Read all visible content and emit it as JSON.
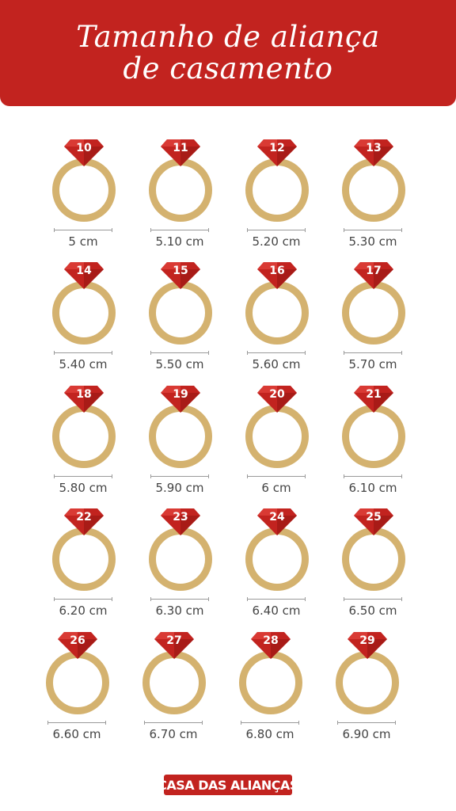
{
  "header": {
    "title_line1": "Tamanho de aliança",
    "title_line2": "de casamento"
  },
  "rings": [
    {
      "size": "10",
      "measure": "5 cm"
    },
    {
      "size": "11",
      "measure": "5.10 cm"
    },
    {
      "size": "12",
      "measure": "5.20 cm"
    },
    {
      "size": "13",
      "measure": "5.30 cm"
    },
    {
      "size": "14",
      "measure": "5.40 cm"
    },
    {
      "size": "15",
      "measure": "5.50 cm"
    },
    {
      "size": "16",
      "measure": "5.60 cm"
    },
    {
      "size": "17",
      "measure": "5.70 cm"
    },
    {
      "size": "18",
      "measure": "5.80 cm"
    },
    {
      "size": "19",
      "measure": "5.90 cm"
    },
    {
      "size": "20",
      "measure": "6 cm"
    },
    {
      "size": "21",
      "measure": "6.10 cm"
    },
    {
      "size": "22",
      "measure": "6.20 cm"
    },
    {
      "size": "23",
      "measure": "6.30 cm"
    },
    {
      "size": "24",
      "measure": "6.40 cm"
    },
    {
      "size": "25",
      "measure": "6.50 cm"
    },
    {
      "size": "26",
      "measure": "6.60 cm"
    },
    {
      "size": "27",
      "measure": "6.70 cm"
    },
    {
      "size": "28",
      "measure": "6.80 cm"
    },
    {
      "size": "29",
      "measure": "6.90 cm"
    }
  ],
  "brand": {
    "label": "CASA DAS ALIANÇAS"
  },
  "colors": {
    "accent_red": "#c2231f",
    "ring_gold": "#d4b26f",
    "text_gray": "#444444"
  },
  "icons": {
    "gem": "heart-diamond-icon",
    "ring": "ring-icon"
  }
}
